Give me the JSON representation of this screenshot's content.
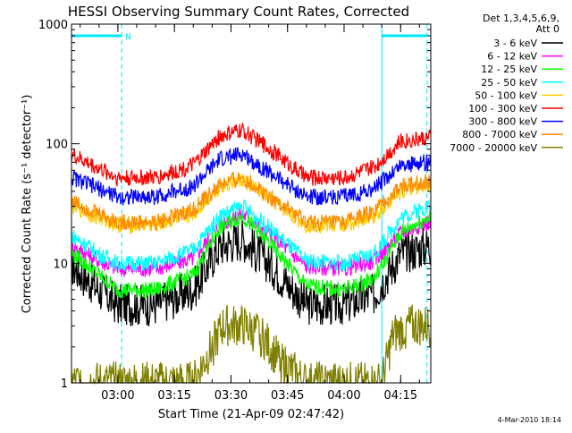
{
  "chart_data": {
    "type": "line",
    "title": "HESSI Observing Summary Count Rates, Corrected",
    "xlabel": "Start Time (21-Apr-09 02:47:42)",
    "ylabel": "Corrected Count Rate (s⁻¹ detector⁻¹)",
    "yscale": "log",
    "ylim": [
      1,
      1000
    ],
    "xlim": [
      "02:47:42",
      "04:23:00"
    ],
    "x_ticks": [
      "03:00",
      "03:15",
      "03:30",
      "03:45",
      "04:00",
      "04:15"
    ],
    "y_ticks": [
      "1",
      "10",
      "100",
      "1000"
    ],
    "grid": false,
    "legend_position": "right",
    "legend_header": [
      "Det 1,3,4,5,6,9,",
      "Att 0"
    ],
    "annotations": {
      "night_marker": "N",
      "cyan_vertical_lines": [
        "02:47:42",
        "03:01:00",
        "04:10:00",
        "04:22:00"
      ],
      "cyan_bars": [
        [
          "02:47:42",
          "03:01:00"
        ],
        [
          "04:10:00",
          "04:22:00"
        ]
      ]
    },
    "series": [
      {
        "name": "3 - 6 keV",
        "color": "#000000",
        "x": [
          "02:48",
          "02:55",
          "03:00",
          "03:10",
          "03:20",
          "03:27",
          "03:33",
          "03:40",
          "03:50",
          "04:00",
          "04:08",
          "04:15",
          "04:22"
        ],
        "values": [
          9.5,
          6.0,
          4.5,
          4.5,
          6.0,
          14.0,
          16.0,
          10.0,
          4.5,
          4.5,
          5.5,
          12.0,
          14.0
        ]
      },
      {
        "name": "6 - 12 keV",
        "color": "#ff00ff",
        "x": [
          "02:48",
          "02:55",
          "03:00",
          "03:10",
          "03:20",
          "03:27",
          "03:33",
          "03:40",
          "03:50",
          "04:00",
          "04:08",
          "04:15",
          "04:22"
        ],
        "values": [
          14.0,
          10.5,
          9.0,
          9.0,
          11.0,
          21.0,
          26.0,
          18.0,
          9.5,
          9.0,
          10.5,
          18.0,
          22.0
        ]
      },
      {
        "name": "12 - 25 keV",
        "color": "#00ff00",
        "x": [
          "02:48",
          "02:55",
          "03:00",
          "03:10",
          "03:20",
          "03:27",
          "03:33",
          "03:40",
          "03:50",
          "04:00",
          "04:08",
          "04:15",
          "04:22"
        ],
        "values": [
          12.0,
          8.0,
          6.0,
          6.0,
          8.0,
          20.0,
          25.0,
          15.0,
          6.5,
          6.0,
          7.5,
          18.0,
          24.0
        ]
      },
      {
        "name": "25 - 50 keV",
        "color": "#00ffff",
        "x": [
          "02:48",
          "02:55",
          "03:00",
          "03:10",
          "03:20",
          "03:27",
          "03:33",
          "03:40",
          "03:50",
          "04:00",
          "04:08",
          "04:15",
          "04:22"
        ],
        "values": [
          17.0,
          12.0,
          10.0,
          10.0,
          13.0,
          25.0,
          30.0,
          20.0,
          10.5,
          10.0,
          12.0,
          24.0,
          30.0
        ]
      },
      {
        "name": "50 - 100 keV",
        "color": "#ffcc00",
        "x": [
          "02:48",
          "02:55",
          "03:00",
          "03:10",
          "03:20",
          "03:27",
          "03:33",
          "03:40",
          "03:50",
          "04:00",
          "04:08",
          "04:15",
          "04:22"
        ],
        "values": [
          30.0,
          24.0,
          21.0,
          21.0,
          26.0,
          44.0,
          50.0,
          35.0,
          21.0,
          21.0,
          25.0,
          40.0,
          46.0
        ]
      },
      {
        "name": "100 - 300 keV",
        "color": "#ff0000",
        "x": [
          "02:48",
          "02:55",
          "03:00",
          "03:10",
          "03:20",
          "03:27",
          "03:33",
          "03:40",
          "03:50",
          "04:00",
          "04:08",
          "04:15",
          "04:22"
        ],
        "values": [
          80.0,
          62.0,
          52.0,
          52.0,
          66.0,
          115.0,
          130.0,
          92.0,
          52.0,
          52.0,
          64.0,
          105.0,
          112.0
        ]
      },
      {
        "name": "300 - 800 keV",
        "color": "#0000ff",
        "x": [
          "02:48",
          "02:55",
          "03:00",
          "03:10",
          "03:20",
          "03:27",
          "03:33",
          "03:40",
          "03:50",
          "04:00",
          "04:08",
          "04:15",
          "04:22"
        ],
        "values": [
          52.0,
          42.0,
          36.0,
          36.0,
          44.0,
          74.0,
          82.0,
          58.0,
          36.0,
          36.0,
          42.0,
          66.0,
          70.0
        ]
      },
      {
        "name": "800 - 7000 keV",
        "color": "#ff8c00",
        "x": [
          "02:48",
          "02:55",
          "03:00",
          "03:10",
          "03:20",
          "03:27",
          "03:33",
          "03:40",
          "03:50",
          "04:00",
          "04:08",
          "04:15",
          "04:22"
        ],
        "values": [
          33.0,
          26.0,
          22.0,
          22.0,
          28.0,
          45.0,
          52.0,
          37.0,
          22.0,
          22.0,
          27.0,
          44.0,
          48.0
        ]
      },
      {
        "name": "7000 - 20000 keV",
        "color": "#808000",
        "x": [
          "02:48",
          "03:00",
          "03:20",
          "03:25",
          "03:28",
          "03:33",
          "03:38",
          "03:43",
          "03:50",
          "04:10",
          "04:13",
          "04:17",
          "04:22"
        ],
        "values": [
          1.0,
          1.0,
          1.0,
          2.0,
          3.0,
          3.0,
          2.5,
          1.5,
          1.0,
          1.0,
          2.5,
          3.0,
          3.0
        ]
      }
    ]
  },
  "footer": {
    "date_stamp": "4-Mar-2010 18:14"
  }
}
